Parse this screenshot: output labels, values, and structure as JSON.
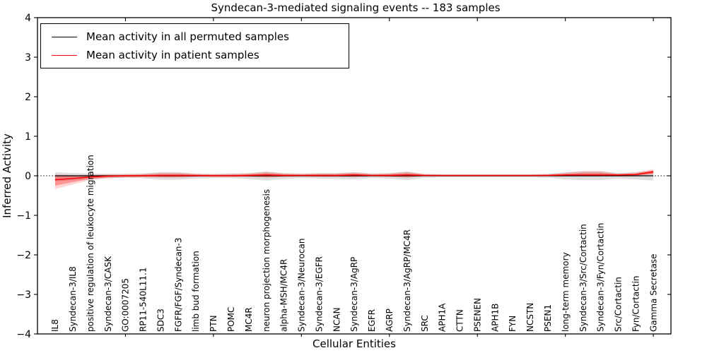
{
  "chart_data": {
    "type": "line",
    "title": "Syndecan-3-mediated signaling events -- 183 samples",
    "xlabel": "Cellular Entities",
    "ylabel": "Inferred Activity",
    "xlim": [
      0,
      36
    ],
    "ylim": [
      -4,
      4
    ],
    "yticks": [
      -4,
      -3,
      -2,
      -1,
      0,
      1,
      2,
      3,
      4
    ],
    "xticks": [
      5,
      10,
      15,
      20,
      25,
      30,
      35
    ],
    "grid": false,
    "legend_position": "upper left",
    "categories": [
      "IL8",
      "Syndecan-3/IL8",
      "positive regulation of leukocyte migration",
      "Syndecan-3/CASK",
      "GO:0007205",
      "RP11-540L11.1",
      "SDC3",
      "FGFR/FGF/Syndecan-3",
      "limb bud formation",
      "PTN",
      "POMC",
      "MC4R",
      "neuron projection morphogenesis",
      "alpha-MSH/MC4R",
      "Syndecan-3/Neurocan",
      "Syndecan-3/EGFR",
      "NCAN",
      "Syndecan-3/AgRP",
      "EGFR",
      "AGRP",
      "Syndecan-3/AgRP/MC4R",
      "SRC",
      "APH1A",
      "CTTN",
      "PSENEN",
      "APH1B",
      "FYN",
      "NCSTN",
      "PSEN1",
      "long-term memory",
      "Syndecan-3/Src/Cortactin",
      "Syndecan-3/Fyn/Cortactin",
      "Src/Cortactin",
      "Fyn/Cortactin",
      "Gamma Secretase"
    ],
    "series": [
      {
        "name": "Mean activity in all permuted samples",
        "color": "#000000",
        "width": 1.3,
        "values": [
          0,
          0,
          0,
          0,
          0,
          0,
          0,
          0,
          0,
          0,
          0,
          0,
          0,
          0,
          0,
          0,
          0,
          0,
          0,
          0,
          0,
          0,
          0,
          0,
          0,
          0,
          0,
          0,
          0,
          0,
          0,
          0,
          0,
          0,
          0
        ]
      },
      {
        "name": "Mean activity in patient samples",
        "color": "#ff0000",
        "width": 1.5,
        "values": [
          -0.1,
          -0.07,
          -0.03,
          -0.01,
          0,
          0,
          0.01,
          0.01,
          0.01,
          0,
          0,
          0.01,
          0.02,
          0.01,
          0.01,
          0.01,
          0.01,
          0.02,
          0.01,
          0.01,
          0.02,
          0.01,
          0.01,
          0.01,
          0.01,
          0.01,
          0.01,
          0.01,
          0.01,
          0.02,
          0.02,
          0.02,
          0.02,
          0.03,
          0.1
        ]
      }
    ],
    "bands": [
      {
        "name": "permuted-samples-range",
        "color": "rgba(0,0,0,0.13)",
        "upper": [
          0.09,
          0.07,
          0.06,
          0.05,
          0.05,
          0.06,
          0.09,
          0.09,
          0.06,
          0.05,
          0.06,
          0.07,
          0.11,
          0.07,
          0.06,
          0.07,
          0.07,
          0.09,
          0.06,
          0.07,
          0.11,
          0.05,
          0.04,
          0.04,
          0.04,
          0.04,
          0.04,
          0.04,
          0.05,
          0.09,
          0.11,
          0.11,
          0.07,
          0.09,
          0.12
        ],
        "lower": [
          -0.14,
          -0.11,
          -0.08,
          -0.06,
          -0.05,
          -0.06,
          -0.1,
          -0.1,
          -0.07,
          -0.06,
          -0.06,
          -0.08,
          -0.12,
          -0.08,
          -0.06,
          -0.07,
          -0.08,
          -0.09,
          -0.06,
          -0.07,
          -0.11,
          -0.05,
          -0.04,
          -0.04,
          -0.04,
          -0.04,
          -0.04,
          -0.04,
          -0.05,
          -0.09,
          -0.11,
          -0.11,
          -0.07,
          -0.09,
          -0.12
        ]
      },
      {
        "name": "patient-samples-range-outer",
        "color": "rgba(255,0,0,0.16)",
        "upper": [
          0.04,
          0.02,
          0.03,
          0.04,
          0.04,
          0.05,
          0.08,
          0.08,
          0.05,
          0.04,
          0.05,
          0.06,
          0.1,
          0.06,
          0.05,
          0.06,
          0.06,
          0.09,
          0.05,
          0.06,
          0.1,
          0.04,
          0.03,
          0.03,
          0.03,
          0.03,
          0.03,
          0.03,
          0.04,
          0.08,
          0.12,
          0.12,
          0.06,
          0.09,
          0.17
        ],
        "lower": [
          -0.34,
          -0.22,
          -0.11,
          -0.06,
          -0.04,
          -0.04,
          -0.05,
          -0.05,
          -0.03,
          -0.03,
          -0.03,
          -0.03,
          -0.05,
          -0.03,
          -0.02,
          -0.03,
          -0.03,
          -0.04,
          -0.02,
          -0.03,
          -0.05,
          -0.01,
          -0.01,
          -0.01,
          -0.01,
          -0.01,
          -0.01,
          -0.01,
          -0.01,
          -0.02,
          -0.02,
          -0.02,
          -0.01,
          0.0,
          0.03
        ]
      },
      {
        "name": "patient-samples-range-inner",
        "color": "rgba(255,0,0,0.30)",
        "upper": [
          0.0,
          -0.01,
          0.01,
          0.02,
          0.02,
          0.03,
          0.05,
          0.05,
          0.03,
          0.03,
          0.03,
          0.04,
          0.07,
          0.04,
          0.03,
          0.04,
          0.04,
          0.06,
          0.03,
          0.04,
          0.07,
          0.03,
          0.02,
          0.02,
          0.02,
          0.02,
          0.02,
          0.02,
          0.03,
          0.05,
          0.08,
          0.08,
          0.04,
          0.06,
          0.14
        ],
        "lower": [
          -0.25,
          -0.16,
          -0.08,
          -0.04,
          -0.03,
          -0.02,
          -0.03,
          -0.03,
          -0.02,
          -0.02,
          -0.02,
          -0.02,
          -0.03,
          -0.02,
          -0.01,
          -0.02,
          -0.02,
          -0.02,
          -0.01,
          -0.02,
          -0.03,
          -0.01,
          0.0,
          0.0,
          0.0,
          0.0,
          0.0,
          0.0,
          0.0,
          -0.01,
          -0.01,
          -0.01,
          0.0,
          0.01,
          0.05
        ]
      }
    ],
    "zero_line": {
      "y": 0,
      "style": "dotted",
      "color": "#000000"
    }
  }
}
